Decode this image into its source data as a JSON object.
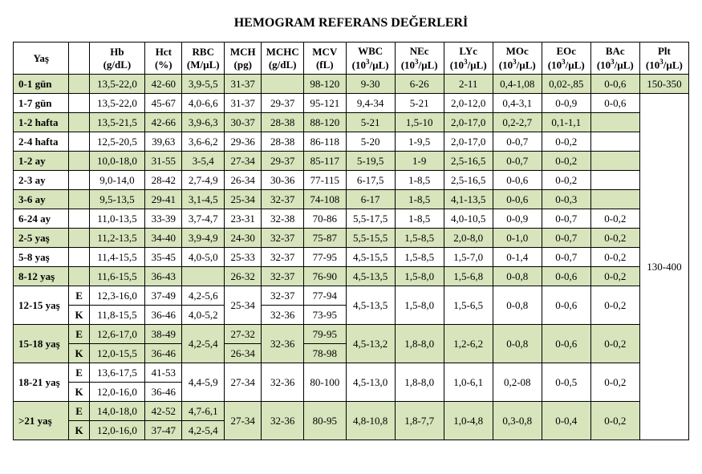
{
  "title": "HEMOGRAM REFERANS DEĞERLERİ",
  "columns": {
    "age": "Yaş",
    "sex": "",
    "hb": {
      "label": "Hb",
      "unit": "(g/dL)"
    },
    "hct": {
      "label": "Hct",
      "unit": "(%)"
    },
    "rbc": {
      "label": "RBC",
      "unit": "(M/µL)"
    },
    "mch": {
      "label": "MCH",
      "unit": "(pg)"
    },
    "mchc": {
      "label": "MCHC",
      "unit": "(g/dL)"
    },
    "mcv": {
      "label": "MCV",
      "unit": "(fL)"
    },
    "wbc": {
      "label": "WBC",
      "unit": "(10³/µL)"
    },
    "nec": {
      "label": "NEc",
      "unit": "(10³/µL)"
    },
    "lyc": {
      "label": "LYc",
      "unit": "(10³/µL)"
    },
    "moc": {
      "label": "MOc",
      "unit": "(10³/µL)"
    },
    "eoc": {
      "label": "EOc",
      "unit": "(10³/µL)"
    },
    "bac": {
      "label": "BAc",
      "unit": "(10³/µL)"
    },
    "plt": {
      "label": "Plt",
      "unit": "(10³/µL)"
    }
  },
  "colors": {
    "shade": "#d7e4bc",
    "border": "#000000",
    "background": "#ffffff"
  },
  "widths": {
    "age": 66,
    "sex": 24,
    "hb": 66,
    "hct": 44,
    "rbc": 50,
    "mch": 44,
    "mchc": 50,
    "mcv": 50,
    "wbc": 58,
    "nec": 58,
    "lyc": 58,
    "moc": 58,
    "eoc": 58,
    "bac": 58,
    "plt": 58
  },
  "plt": {
    "first": "150-350",
    "rest": "130-400"
  },
  "rows": [
    {
      "age": "0-1 gün",
      "shade": true,
      "hb": "13,5-22,0",
      "hct": "42-60",
      "rbc": "3,9-5,5",
      "mch": "31-37",
      "mchc": "",
      "mcv": "98-120",
      "wbc": "9-30",
      "nec": "6-26",
      "lyc": "2-11",
      "moc": "0,4-1,08",
      "eoc": "0,02-,85",
      "bac": "0-0,6",
      "plt": "first"
    },
    {
      "age": "1-7 gün",
      "shade": false,
      "hb": "13,5-22,0",
      "hct": "45-67",
      "rbc": "4,0-6,6",
      "mch": "31-37",
      "mchc": "29-37",
      "mcv": "95-121",
      "wbc": "9,4-34",
      "nec": "5-21",
      "lyc": "2,0-12,0",
      "moc": "0,4-3,1",
      "eoc": "0-0,9",
      "bac": "0-0,6",
      "plt": "rest"
    },
    {
      "age": "1-2 hafta",
      "shade": true,
      "hb": "13,5-21,5",
      "hct": "42-66",
      "rbc": "3,9-6,3",
      "mch": "30-37",
      "mchc": "28-38",
      "mcv": "88-120",
      "wbc": "5-21",
      "nec": "1,5-10",
      "lyc": "2,0-17,0",
      "moc": "0,2-2,7",
      "eoc": "0,1-1,1",
      "bac": ""
    },
    {
      "age": "2-4 hafta",
      "shade": false,
      "hb": "12,5-20,5",
      "hct": "39,63",
      "rbc": "3,6-6,2",
      "mch": "29-36",
      "mchc": "28-38",
      "mcv": "86-118",
      "wbc": "5-20",
      "nec": "1-9,5",
      "lyc": "2,0-17,0",
      "moc": "0-0,7",
      "eoc": "0-0,2",
      "bac": ""
    },
    {
      "age": "1-2 ay",
      "shade": true,
      "hb": "10,0-18,0",
      "hct": "31-55",
      "rbc": "3-5,4",
      "mch": "27-34",
      "mchc": "29-37",
      "mcv": "85-117",
      "wbc": "5-19,5",
      "nec": "1-9",
      "lyc": "2,5-16,5",
      "moc": "0-0,7",
      "eoc": "0-0,2",
      "bac": ""
    },
    {
      "age": "2-3 ay",
      "shade": false,
      "hb": "9,0-14,0",
      "hct": "28-42",
      "rbc": "2,7-4,9",
      "mch": "26-34",
      "mchc": "30-36",
      "mcv": "77-115",
      "wbc": "6-17,5",
      "nec": "1-8,5",
      "lyc": "2,5-16,5",
      "moc": "0-0,6",
      "eoc": "0-0,2",
      "bac": ""
    },
    {
      "age": "3-6 ay",
      "shade": true,
      "hb": "9,5-13,5",
      "hct": "29-41",
      "rbc": "3,1-4,5",
      "mch": "25-34",
      "mchc": "32-37",
      "mcv": "74-108",
      "wbc": "6-17",
      "nec": "1-8,5",
      "lyc": "4,1-13,5",
      "moc": "0-0,6",
      "eoc": "0-0,3",
      "bac": ""
    },
    {
      "age": "6-24 ay",
      "shade": false,
      "hb": "11,0-13,5",
      "hct": "33-39",
      "rbc": "3,7-4,7",
      "mch": "23-31",
      "mchc": "32-38",
      "mcv": "70-86",
      "wbc": "5,5-17,5",
      "nec": "1-8,5",
      "lyc": "4,0-10,5",
      "moc": "0-0,9",
      "eoc": "0-0,7",
      "bac": "0-0,2"
    },
    {
      "age": "2-5 yaş",
      "shade": true,
      "hb": "11,2-13,5",
      "hct": "34-40",
      "rbc": "3,9-4,9",
      "mch": "24-30",
      "mchc": "32-37",
      "mcv": "75-87",
      "wbc": "5,5-15,5",
      "nec": "1,5-8,5",
      "lyc": "2,0-8,0",
      "moc": "0-1,0",
      "eoc": "0-0,7",
      "bac": "0-0,2"
    },
    {
      "age": "5-8 yaş",
      "shade": false,
      "hb": "11,4-15,5",
      "hct": "35-45",
      "rbc": "4,0-5,0",
      "mch": "25-33",
      "mchc": "32-37",
      "mcv": "77-95",
      "wbc": "4,5-15,5",
      "nec": "1,5-8,5",
      "lyc": "1,5-7,0",
      "moc": "0-1,4",
      "eoc": "0-0,7",
      "bac": "0-0,2"
    },
    {
      "age": "8-12 yaş",
      "shade": true,
      "hb": "11,6-15,5",
      "hct": "36-43",
      "rbc": "",
      "mch": "26-32",
      "mchc": "32-37",
      "mcv": "76-90",
      "wbc": "4,5-13,5",
      "nec": "1,5-8,0",
      "lyc": "1,5-6,8",
      "moc": "0-0,8",
      "eoc": "0-0,6",
      "bac": "0-0,2"
    }
  ],
  "pairs": [
    {
      "age": "12-15 yaş",
      "shade": false,
      "e": {
        "hb": "12,3-16,0",
        "hct": "37-49",
        "rbc": "4,2-5,6",
        "mchc": "32-37",
        "mcv": "77-94"
      },
      "k": {
        "hb": "11,8-15,5",
        "hct": "36-46",
        "rbc": "4,0-5,2",
        "mchc": "32-36",
        "mcv": "73-95"
      },
      "shared": {
        "mch": "25-34",
        "wbc": "4,5-13,5",
        "nec": "1,5-8,0",
        "lyc": "1,5-6,5",
        "moc": "0-0,8",
        "eoc": "0-0,6",
        "bac": "0-0,2"
      }
    },
    {
      "age": "15-18 yaş",
      "shade": true,
      "e": {
        "hb": "12,6-17,0",
        "hct": "38-49",
        "mch": "27-32",
        "mcv": "79-95"
      },
      "k": {
        "hb": "12,0-15,5",
        "hct": "36-46",
        "mch": "26-34",
        "mcv": "78-98"
      },
      "shared": {
        "rbc": "4,2-5,4",
        "mchc": "32-36",
        "wbc": "4,5-13,2",
        "nec": "1,8-8,0",
        "lyc": "1,2-6,2",
        "moc": "0-0,8",
        "eoc": "0-0,6",
        "bac": "0-0,2"
      }
    },
    {
      "age": "18-21 yaş",
      "shade": false,
      "e": {
        "hb": "13,6-17,5",
        "hct": "41-53"
      },
      "k": {
        "hb": "12,0-16,0",
        "hct": "36-46"
      },
      "shared": {
        "rbc": "4,4-5,9",
        "mch": "27-34",
        "mchc": "32-36",
        "mcv": "80-100",
        "wbc": "4,5-13,0",
        "nec": "1,8-8,0",
        "lyc": "1,0-6,1",
        "moc": "0,2-08",
        "eoc": "0-0,5",
        "bac": "0-0,2"
      }
    },
    {
      "age": ">21 yaş",
      "shade": true,
      "e": {
        "hb": "14,0-18,0",
        "hct": "42-52",
        "rbc": "4,7-6,1"
      },
      "k": {
        "hb": "12,0-16,0",
        "hct": "37-47",
        "rbc": "4,2-5,4"
      },
      "shared": {
        "mch": "27-34",
        "mchc": "32-36",
        "mcv": "80-95",
        "wbc": "4,8-10,8",
        "nec": "1,8-7,7",
        "lyc": "1,0-4,8",
        "moc": "0,3-0,8",
        "eoc": "0-0,4",
        "bac": "0-0,2"
      }
    }
  ]
}
